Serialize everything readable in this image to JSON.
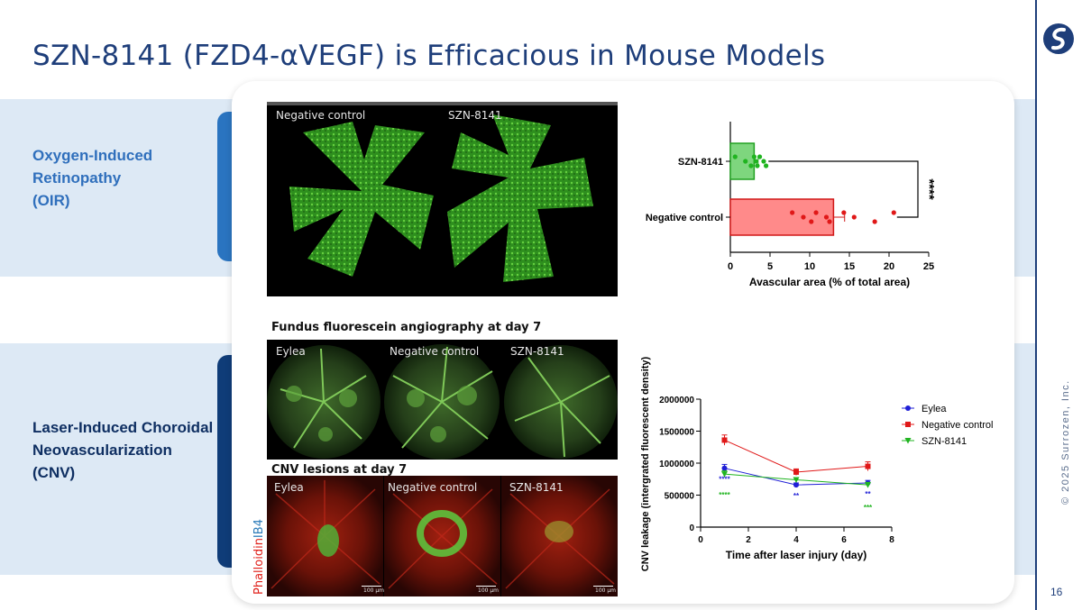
{
  "slide": {
    "title": "SZN-8141 (FZD4-αVEGF) is Efficacious in Mouse Models",
    "copyright": "© 2025 Surrozen, Inc.",
    "page_number": "16"
  },
  "sections": {
    "oir": {
      "line1": "Oxygen-Induced",
      "line2": "Retinopathy",
      "line3": "(OIR)"
    },
    "cnv": {
      "line1": "Laser-Induced Choroidal",
      "line2": "Neovascularization",
      "line3": "(CNV)"
    }
  },
  "oir_image": {
    "label_left": "Negative control",
    "label_right": "SZN-8141"
  },
  "ffa": {
    "caption": "Fundus fluorescein angiography at day 7",
    "labels": [
      "Eylea",
      "Negative control",
      "SZN-8141"
    ]
  },
  "cnv_lesions": {
    "caption": "CNV lesions at day 7",
    "labels": [
      "Eylea",
      "Negative control",
      "SZN-8141"
    ],
    "scale_bars": [
      "100 µm",
      "100 µm",
      "100 µm"
    ],
    "stain_red": "Phalloidin",
    "stain_blue": "IB4"
  },
  "colors": {
    "brand_navy": "#1e3e7a",
    "band_bg": "#dde9f5",
    "eylea": "#1f1fd6",
    "negative_control": "#e01818",
    "szn8141": "#20b420"
  },
  "chart_data": [
    {
      "type": "bar",
      "orientation": "horizontal",
      "categories": [
        "SZN-8141",
        "Negative control"
      ],
      "values": [
        3.0,
        13.0
      ],
      "errors": [
        0.5,
        1.4
      ],
      "points": [
        [
          0.6,
          1.9,
          2.6,
          3.0,
          3.2,
          3.4,
          3.7,
          4.2,
          4.5
        ],
        [
          7.8,
          9.2,
          10.2,
          10.8,
          12.1,
          12.5,
          14.3,
          15.6,
          18.2,
          20.6
        ]
      ],
      "xlabel": "Avascular area (% of total area)",
      "xlim": [
        0,
        25
      ],
      "xticks": [
        0,
        5,
        10,
        15,
        20,
        25
      ],
      "significance": "****"
    },
    {
      "type": "line",
      "x": [
        1,
        4,
        7
      ],
      "series": [
        {
          "name": "Eylea",
          "values": [
            920000,
            660000,
            690000
          ],
          "errors": [
            60000,
            30000,
            40000
          ],
          "marker": "circle"
        },
        {
          "name": "Negative control",
          "values": [
            1360000,
            860000,
            950000
          ],
          "errors": [
            80000,
            50000,
            70000
          ],
          "marker": "square"
        },
        {
          "name": "SZN-8141",
          "values": [
            830000,
            740000,
            660000
          ],
          "errors": [
            50000,
            30000,
            40000
          ],
          "marker": "triangle"
        }
      ],
      "xlabel": "Time after laser injury (day)",
      "ylabel": "CNV leakage (intergrated fluorescent density)",
      "xlim": [
        0,
        8
      ],
      "ylim": [
        0,
        2000000
      ],
      "xticks": [
        0,
        2,
        4,
        6,
        8
      ],
      "yticks": [
        0,
        500000,
        1000000,
        1500000,
        2000000
      ],
      "annotations": [
        {
          "x": 1,
          "text": "****",
          "series": "Eylea"
        },
        {
          "x": 1,
          "text": "****",
          "series": "SZN-8141"
        },
        {
          "x": 4,
          "text": "**",
          "series": "Eylea"
        },
        {
          "x": 7,
          "text": "**",
          "series": "Eylea"
        },
        {
          "x": 7,
          "text": "***",
          "series": "SZN-8141"
        }
      ],
      "legend": "top-right"
    }
  ]
}
